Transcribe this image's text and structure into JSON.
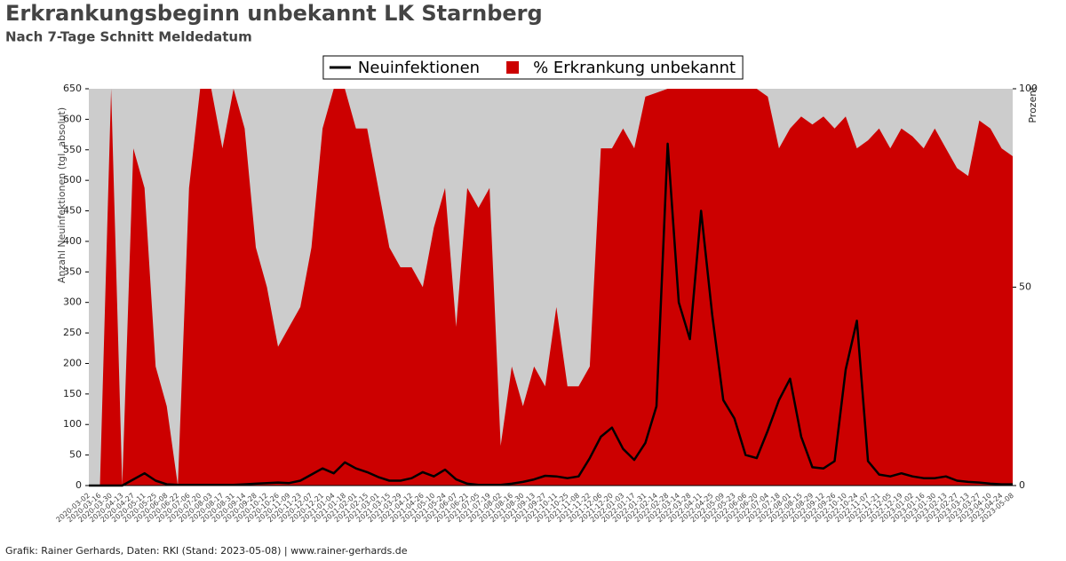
{
  "chart_data": {
    "type": "line_area_dual",
    "title": "Erkrankungsbeginn unbekannt LK Starnberg",
    "subtitle": "Nach 7-Tage Schnitt Meldedatum",
    "y_label": "Anzahl Neuinfektionen (tgl. absolut)",
    "y2_label": "Prozent",
    "footer": "Grafik: Rainer Gerhards, Daten: RKI (Stand: 2023-05-08) | www.rainer-gerhards.de",
    "categories": [
      "2020-03-02",
      "2020-03-16",
      "2020-03-30",
      "2020-04-13",
      "2020-04-27",
      "2020-05-11",
      "2020-05-25",
      "2020-06-08",
      "2020-06-22",
      "2020-07-06",
      "2020-07-20",
      "2020-08-03",
      "2020-08-17",
      "2020-08-31",
      "2020-09-14",
      "2020-09-28",
      "2020-10-12",
      "2020-10-26",
      "2020-11-09",
      "2020-11-23",
      "2020-12-07",
      "2020-12-21",
      "2021-01-04",
      "2021-01-18",
      "2021-02-01",
      "2021-02-15",
      "2021-03-01",
      "2021-03-15",
      "2021-03-29",
      "2021-04-12",
      "2021-04-26",
      "2021-05-10",
      "2021-05-24",
      "2021-06-07",
      "2021-06-21",
      "2021-07-05",
      "2021-07-19",
      "2021-08-02",
      "2021-08-16",
      "2021-08-30",
      "2021-09-13",
      "2021-09-27",
      "2021-10-11",
      "2021-10-25",
      "2021-11-08",
      "2021-11-22",
      "2021-12-06",
      "2021-12-20",
      "2022-01-03",
      "2022-01-17",
      "2022-01-31",
      "2022-02-14",
      "2022-02-28",
      "2022-03-14",
      "2022-03-28",
      "2022-04-11",
      "2022-04-25",
      "2022-05-09",
      "2022-05-23",
      "2022-06-06",
      "2022-06-20",
      "2022-07-04",
      "2022-07-18",
      "2022-08-01",
      "2022-08-15",
      "2022-08-29",
      "2022-09-12",
      "2022-09-26",
      "2022-10-10",
      "2022-10-24",
      "2022-11-07",
      "2022-11-21",
      "2022-12-05",
      "2022-12-19",
      "2023-01-02",
      "2023-01-16",
      "2023-01-30",
      "2023-02-13",
      "2023-02-27",
      "2023-03-13",
      "2023-03-27",
      "2023-04-10",
      "2023-04-24",
      "2023-05-08"
    ],
    "series": [
      {
        "name": "Neuinfektionen",
        "color": "#000000",
        "axis": "y",
        "values": [
          0,
          0,
          0,
          0,
          10,
          20,
          8,
          2,
          1,
          1,
          1,
          1,
          1,
          1,
          2,
          3,
          4,
          5,
          4,
          8,
          18,
          28,
          20,
          38,
          28,
          22,
          14,
          8,
          8,
          12,
          22,
          15,
          26,
          10,
          3,
          1,
          1,
          1,
          3,
          6,
          10,
          16,
          15,
          12,
          15,
          45,
          80,
          95,
          60,
          42,
          70,
          130,
          560,
          300,
          240,
          450,
          280,
          140,
          110,
          50,
          45,
          90,
          140,
          175,
          80,
          30,
          28,
          40,
          190,
          270,
          40,
          18,
          15,
          20,
          15,
          12,
          12,
          15,
          8,
          6,
          5,
          3,
          2,
          2
        ]
      },
      {
        "name": "% Erkrankung unbekannt",
        "color": "#cc0000",
        "axis": "y2",
        "values": [
          0,
          0,
          100,
          0,
          85,
          75,
          30,
          20,
          0,
          75,
          100,
          100,
          85,
          100,
          90,
          60,
          50,
          35,
          40,
          45,
          60,
          90,
          100,
          100,
          90,
          90,
          75,
          60,
          55,
          55,
          50,
          65,
          75,
          40,
          75,
          70,
          75,
          10,
          30,
          20,
          30,
          25,
          45,
          25,
          25,
          30,
          85,
          85,
          90,
          85,
          98,
          99,
          100,
          100,
          100,
          100,
          100,
          100,
          100,
          100,
          100,
          98,
          85,
          90,
          93,
          91,
          93,
          90,
          93,
          85,
          87,
          90,
          85,
          90,
          88,
          85,
          90,
          85,
          80,
          78,
          92,
          90,
          85,
          83
        ]
      }
    ],
    "ylim": [
      0,
      650
    ],
    "yticks": [
      0,
      50,
      100,
      150,
      200,
      250,
      300,
      350,
      400,
      450,
      500,
      550,
      600,
      650
    ],
    "y2lim": [
      0,
      100
    ],
    "y2ticks": [
      0,
      50,
      100
    ],
    "grid": false,
    "legend": "top"
  }
}
